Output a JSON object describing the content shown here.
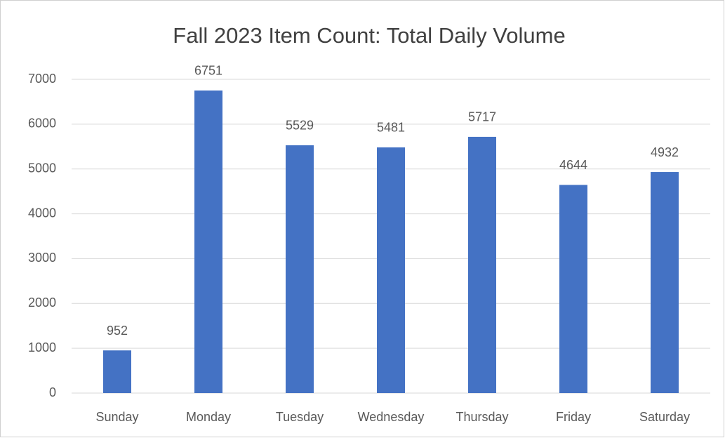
{
  "chart_data": {
    "type": "bar",
    "title": "Fall 2023 Item Count: Total Daily Volume",
    "categories": [
      "Sunday",
      "Monday",
      "Tuesday",
      "Wednesday",
      "Thursday",
      "Friday",
      "Saturday"
    ],
    "values": [
      952,
      6751,
      5529,
      5481,
      5717,
      4644,
      4932
    ],
    "color": "#4472c4",
    "ylim": [
      0,
      7000
    ],
    "yticks": [
      0,
      1000,
      2000,
      3000,
      4000,
      5000,
      6000,
      7000
    ],
    "grid": true
  }
}
